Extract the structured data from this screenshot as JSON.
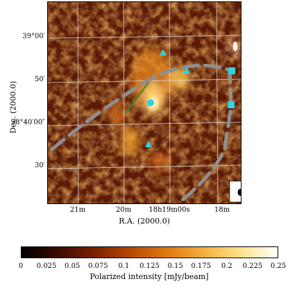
{
  "figure": {
    "xaxis_title": "R.A. (2000.0)",
    "yaxis_title": "Dec. (2000.0)",
    "y_ticks": [
      "39°00′",
      "50′",
      "38°40′00″",
      "30′"
    ],
    "x_ticks": [
      "21m",
      "20m",
      "18h19m00s",
      "18m"
    ],
    "colorbar_title": "Polarized intensity [mJy/beam]",
    "colorbar_ticks": [
      "0",
      "0.025",
      "0.05",
      "0.075",
      "0.1",
      "0.125",
      "0.15",
      "0.175",
      "0.2",
      "0.225",
      "0.25"
    ],
    "colorbar_range": [
      0,
      0.25
    ],
    "colormap": [
      "#000000",
      "#3a0a00",
      "#7a2200",
      "#b84a00",
      "#e07a10",
      "#f5b040",
      "#fde28a",
      "#ffffff"
    ],
    "marker_color": "#2fd3e0",
    "dash_color": "#8f8f8f",
    "line_color": "#2a8a2a",
    "grid_color": "#d8d8d8"
  }
}
